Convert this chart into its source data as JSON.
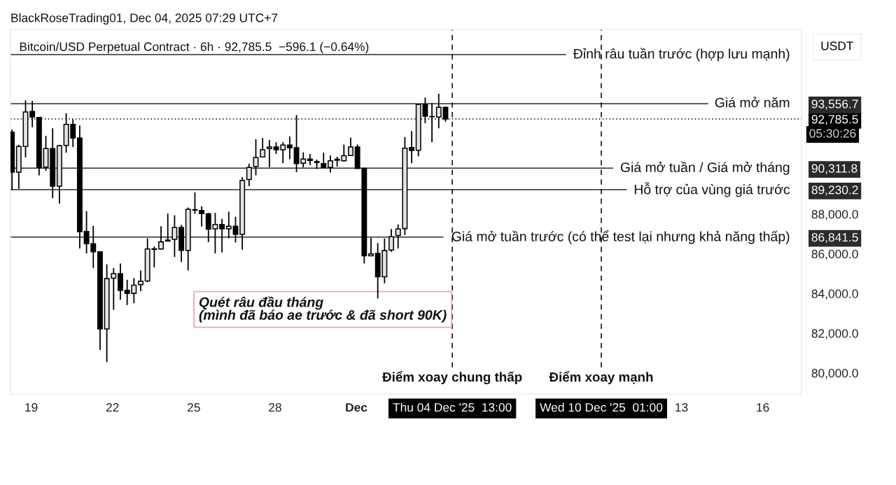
{
  "chart_data": {
    "type": "candlestick",
    "title": "Bitcoin/USD Perpetual Contract · 6h · 92,785.5  −596.1 (−0.64%)",
    "ylabel": "USDT",
    "annotations": [
      "BlackRoseTrading01, Dec 04, 2025 07:29 UTC+7",
      "Quét râu đầu tháng\n(mình đã báo ae trước & đã short 90K)",
      "05:30:26"
    ],
    "x": [
      "2025-11-18T07:00",
      "2025-11-18T13:00",
      "2025-11-18T19:00",
      "2025-11-19T01:00",
      "2025-11-19T07:00",
      "2025-11-19T13:00",
      "2025-11-19T19:00",
      "2025-11-20T01:00",
      "2025-11-20T07:00",
      "2025-11-20T13:00",
      "2025-11-20T19:00",
      "2025-11-21T01:00",
      "2025-11-21T07:00",
      "2025-11-21T13:00",
      "2025-11-21T19:00",
      "2025-11-22T01:00",
      "2025-11-22T07:00",
      "2025-11-22T13:00",
      "2025-11-22T19:00",
      "2025-11-23T01:00",
      "2025-11-23T07:00",
      "2025-11-23T13:00",
      "2025-11-23T19:00",
      "2025-11-24T01:00",
      "2025-11-24T07:00",
      "2025-11-24T13:00",
      "2025-11-24T19:00",
      "2025-11-25T01:00",
      "2025-11-25T07:00",
      "2025-11-25T13:00",
      "2025-11-25T19:00",
      "2025-11-26T01:00",
      "2025-11-26T07:00",
      "2025-11-26T13:00",
      "2025-11-26T19:00",
      "2025-11-27T01:00",
      "2025-11-27T07:00",
      "2025-11-27T13:00",
      "2025-11-27T19:00",
      "2025-11-28T01:00",
      "2025-11-28T07:00",
      "2025-11-28T13:00",
      "2025-11-28T19:00",
      "2025-11-29T01:00",
      "2025-11-29T07:00",
      "2025-11-29T13:00",
      "2025-11-29T19:00",
      "2025-11-30T01:00",
      "2025-11-30T07:00",
      "2025-11-30T13:00",
      "2025-11-30T19:00",
      "2025-12-01T01:00",
      "2025-12-01T07:00",
      "2025-12-01T13:00",
      "2025-12-01T19:00",
      "2025-12-02T01:00",
      "2025-12-02T07:00",
      "2025-12-02T13:00",
      "2025-12-02T19:00",
      "2025-12-03T01:00",
      "2025-12-03T07:00",
      "2025-12-03T13:00",
      "2025-12-03T19:00",
      "2025-12-04T01:00",
      "2025-12-04T07:00"
    ],
    "ohlc": [
      [
        92120,
        92260,
        89200,
        90110
      ],
      [
        90110,
        91490,
        89270,
        91410
      ],
      [
        91410,
        93730,
        90850,
        93140
      ],
      [
        93170,
        93700,
        92380,
        92890
      ],
      [
        92870,
        92870,
        89950,
        90350
      ],
      [
        90370,
        91940,
        90180,
        91300
      ],
      [
        91300,
        92320,
        88800,
        89410
      ],
      [
        89410,
        91490,
        88530,
        91440
      ],
      [
        91460,
        93080,
        91090,
        92520
      ],
      [
        92520,
        92770,
        91380,
        91830
      ],
      [
        91830,
        92460,
        86270,
        87120
      ],
      [
        87120,
        88150,
        86020,
        86510
      ],
      [
        86510,
        87410,
        85280,
        86100
      ],
      [
        86100,
        86120,
        81160,
        82220
      ],
      [
        82220,
        85470,
        80550,
        84750
      ],
      [
        84770,
        85280,
        83180,
        85000
      ],
      [
        85000,
        85510,
        83690,
        84160
      ],
      [
        84160,
        84690,
        83420,
        84010
      ],
      [
        84010,
        84780,
        83510,
        84420
      ],
      [
        84450,
        85160,
        84120,
        84620
      ],
      [
        84630,
        86780,
        84570,
        86240
      ],
      [
        86250,
        86370,
        85310,
        86220
      ],
      [
        86240,
        87390,
        86210,
        86600
      ],
      [
        86690,
        88030,
        86630,
        86640
      ],
      [
        86730,
        87940,
        85840,
        87330
      ],
      [
        87330,
        87450,
        85590,
        86170
      ],
      [
        86170,
        88330,
        85160,
        88240
      ],
      [
        88220,
        89090,
        88020,
        88200
      ],
      [
        88180,
        88390,
        87370,
        88020
      ],
      [
        88010,
        88060,
        86590,
        87240
      ],
      [
        87260,
        88060,
        86020,
        87480
      ],
      [
        87480,
        87760,
        86070,
        87260
      ],
      [
        87260,
        88120,
        86780,
        87390
      ],
      [
        87390,
        87860,
        86570,
        86980
      ],
      [
        86980,
        89860,
        86210,
        89700
      ],
      [
        89740,
        90540,
        89410,
        90350
      ],
      [
        90390,
        91770,
        89950,
        90850
      ],
      [
        90880,
        91830,
        90880,
        91240
      ],
      [
        91300,
        91730,
        90360,
        91380
      ],
      [
        91380,
        91620,
        91030,
        91240
      ],
      [
        91240,
        91620,
        90560,
        91480
      ],
      [
        91480,
        91910,
        90760,
        91340
      ],
      [
        91340,
        92990,
        90110,
        90540
      ],
      [
        90560,
        91110,
        90350,
        90770
      ],
      [
        90770,
        91030,
        90470,
        90700
      ],
      [
        90640,
        90740,
        90270,
        90600
      ],
      [
        90540,
        91090,
        90330,
        90350
      ],
      [
        90350,
        90950,
        90090,
        90680
      ],
      [
        90710,
        90890,
        90390,
        90760
      ],
      [
        90680,
        91500,
        90640,
        90940
      ],
      [
        90950,
        91850,
        90940,
        91380
      ],
      [
        91380,
        91500,
        90300,
        90300
      ],
      [
        90300,
        90300,
        85510,
        85900
      ],
      [
        85900,
        86800,
        85890,
        86000
      ],
      [
        86020,
        86540,
        83750,
        84840
      ],
      [
        84840,
        86770,
        84510,
        86160
      ],
      [
        86190,
        87250,
        86100,
        86860
      ],
      [
        86920,
        87480,
        86270,
        87250
      ],
      [
        87270,
        91880,
        86950,
        91320
      ],
      [
        91350,
        92180,
        90560,
        91200
      ],
      [
        91210,
        93520,
        90910,
        93520
      ],
      [
        93520,
        93870,
        92580,
        92930
      ],
      [
        92910,
        93590,
        91620,
        92900
      ],
      [
        92890,
        94060,
        92320,
        93380
      ],
      [
        93380,
        93400,
        92650,
        92785.5
      ]
    ],
    "colors": [
      "#000000",
      "#e3e3e3",
      "#e3e3e3",
      "#000000",
      "#000000",
      "#e3e3e3",
      "#000000",
      "#e3e3e3",
      "#e3e3e3",
      "#000000",
      "#000000",
      "#000000",
      "#000000",
      "#000000",
      "#e3e3e3",
      "#e3e3e3",
      "#000000",
      "#000000",
      "#e3e3e3",
      "#e3e3e3",
      "#e3e3e3",
      "#000000",
      "#e3e3e3",
      "#000000",
      "#e3e3e3",
      "#000000",
      "#e3e3e3",
      "#000000",
      "#000000",
      "#000000",
      "#e3e3e3",
      "#000000",
      "#e3e3e3",
      "#000000",
      "#e3e3e3",
      "#e3e3e3",
      "#e3e3e3",
      "#e3e3e3",
      "#e3e3e3",
      "#000000",
      "#e3e3e3",
      "#000000",
      "#000000",
      "#e3e3e3",
      "#000000",
      "#000000",
      "#000000",
      "#e3e3e3",
      "#e3e3e3",
      "#e3e3e3",
      "#e3e3e3",
      "#000000",
      "#000000",
      "#e3e3e3",
      "#000000",
      "#e3e3e3",
      "#e3e3e3",
      "#e3e3e3",
      "#e3e3e3",
      "#000000",
      "#e3e3e3",
      "#000000",
      "#000000",
      "#e3e3e3",
      "#000000"
    ],
    "xlim": [
      "2025-11-18T05:40",
      "2025-12-17T10:20"
    ],
    "xticks": [
      {
        "value": "2025-11-19",
        "label": "19"
      },
      {
        "value": "2025-11-22",
        "label": "22"
      },
      {
        "value": "2025-11-25",
        "label": "25"
      },
      {
        "value": "2025-11-28",
        "label": "28"
      },
      {
        "value": "2025-12-01",
        "label": "Dec"
      },
      {
        "value": "2025-12-04T13:00",
        "label": "Thu 04 Dec '25  13:00"
      },
      {
        "value": "2025-12-10T01:00",
        "label": "Wed 10 Dec '25  01:00"
      },
      {
        "value": "2025-12-13",
        "label": "13"
      },
      {
        "value": "2025-12-16",
        "label": "16"
      }
    ],
    "ylim": [
      78940,
      97300
    ],
    "yticks": [
      {
        "value": 80000,
        "label": "80,000.0"
      },
      {
        "value": 82000,
        "label": "82,000.0"
      },
      {
        "value": 84000,
        "label": "84,000.0"
      },
      {
        "value": 86000,
        "label": "86,000.0"
      },
      {
        "value": 86841.5,
        "label": "86,841.5"
      },
      {
        "value": 88000,
        "label": "88,000.0"
      },
      {
        "value": 89230.2,
        "label": "89,230.2"
      },
      {
        "value": 90311.8,
        "label": "90,311.8"
      },
      {
        "value": 92785.5,
        "label": "92,785.5"
      },
      {
        "value": 93556.7,
        "label": "93,556.7"
      }
    ],
    "ref_lines": [
      {
        "axis": "y",
        "value": 96030,
        "label": "Đỉnh râu tuần trước (hợp lưu mạnh)",
        "color": "#2b2b2b",
        "line_style": "solid"
      },
      {
        "axis": "y",
        "value": 93556.7,
        "label": "Giá mở năm",
        "color": "#2b2b2b",
        "line_style": "solid"
      },
      {
        "axis": "y",
        "value": 92785.5,
        "color": "#000000",
        "line_style": "dotted"
      },
      {
        "axis": "y",
        "value": 90311.8,
        "label": "Giá mở tuần / Giá mở tháng",
        "color": "#2b2b2b",
        "line_style": "solid"
      },
      {
        "axis": "y",
        "value": 89230.2,
        "label": "Hỗ trợ của vùng giá trước",
        "color": "#2b2b2b",
        "line_style": "solid"
      },
      {
        "axis": "y",
        "value": 86841.5,
        "label": "Giá mở tuần trước (có thể test lại nhưng khả năng thấp)",
        "color": "#2b2b2b",
        "line_style": "solid"
      },
      {
        "axis": "x",
        "value": "2025-12-04T13:00",
        "label": "Điểm xoay chung thấp",
        "color": "#000000",
        "line_style": "dashed"
      },
      {
        "axis": "x",
        "value": "2025-12-10T01:00",
        "label": "Điểm xoay mạnh",
        "color": "#000000",
        "line_style": "dashed"
      }
    ]
  }
}
